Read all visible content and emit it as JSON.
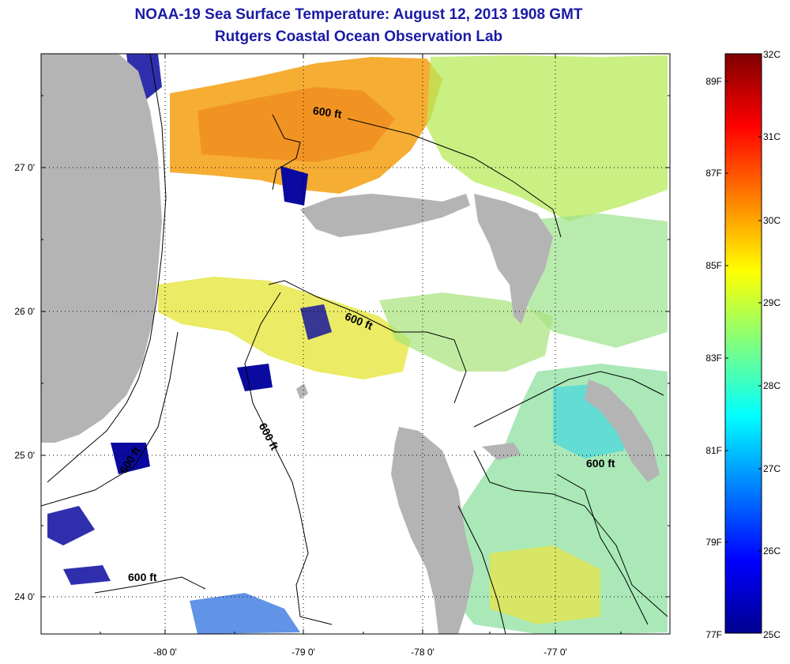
{
  "title_line1": "NOAA-19 Sea Surface Temperature:  August 12, 2013 1908 GMT",
  "title_line2": "Rutgers Coastal Ocean Observation Lab",
  "latitude_labels": [
    "27 0'",
    "26 0'",
    "25 0'",
    "24 0'"
  ],
  "longitude_labels": [
    "-80 0'",
    "-79 0'",
    "-78 0'",
    "-77 0'"
  ],
  "colorbar": {
    "celsius_labels": [
      "32C",
      "31C",
      "30C",
      "29C",
      "28C",
      "27C",
      "26C",
      "25C"
    ],
    "fahrenheit_labels": [
      "89F",
      "87F",
      "85F",
      "83F",
      "81F",
      "79F",
      "77F"
    ],
    "min_c": 25,
    "max_c": 32,
    "colors": [
      "#00008f",
      "#0000ff",
      "#007fff",
      "#00ffff",
      "#7fff7f",
      "#ffff00",
      "#ff7f00",
      "#ff0000",
      "#7f0000"
    ]
  },
  "contour_labels": [
    "600 ft",
    "600 ft",
    "600 ft",
    "600 ft",
    "600 ft",
    "600 ft"
  ],
  "colors": {
    "land": "#b4b4b4",
    "title": "#1a1aa6",
    "no_data": "#ffffff"
  }
}
